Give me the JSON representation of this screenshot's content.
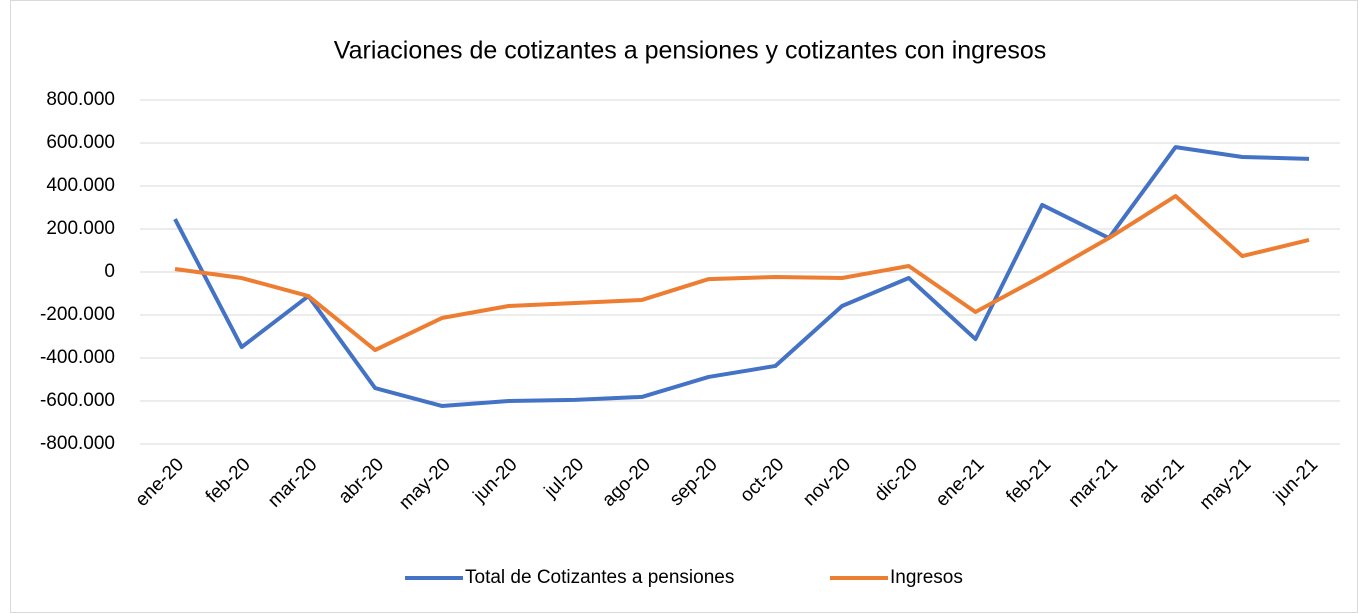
{
  "chart_data": {
    "type": "line",
    "title": "Variaciones de cotizantes a pensiones y cotizantes con ingresos",
    "categories": [
      "ene-20",
      "feb-20",
      "mar-20",
      "abr-20",
      "may-20",
      "jun-20",
      "jul-20",
      "ago-20",
      "sep-20",
      "oct-20",
      "nov-20",
      "dic-20",
      "ene-21",
      "feb-21",
      "mar-21",
      "abr-21",
      "may-21",
      "jun-21"
    ],
    "series": [
      {
        "name": "Total de Cotizantes a pensiones",
        "color": "#4472c4",
        "values": [
          246000,
          -349000,
          -112000,
          -540000,
          -623000,
          -600000,
          -595000,
          -581000,
          -488000,
          -437000,
          -158000,
          -28000,
          -312000,
          312000,
          158000,
          581000,
          535000,
          526000
        ]
      },
      {
        "name": "Ingresos",
        "color": "#ed7d31",
        "values": [
          14000,
          -28000,
          -112000,
          -363000,
          -214000,
          -158000,
          -144000,
          -130000,
          -33000,
          -23000,
          -28000,
          28000,
          -186000,
          -19000,
          158000,
          353000,
          74000,
          149000
        ]
      }
    ],
    "ylim": [
      -800000,
      800000
    ],
    "yticks": [
      {
        "value": -800000,
        "label": "-800.000"
      },
      {
        "value": -600000,
        "label": "-600.000"
      },
      {
        "value": -400000,
        "label": "-400.000"
      },
      {
        "value": -200000,
        "label": "-200.000"
      },
      0,
      {
        "value": 200000,
        "label": "200.000"
      },
      {
        "value": 400000,
        "label": "400.000"
      },
      {
        "value": 600000,
        "label": "600.000"
      },
      {
        "value": 800000,
        "label": "800.000"
      }
    ],
    "grid": true,
    "legend": "bottom"
  }
}
